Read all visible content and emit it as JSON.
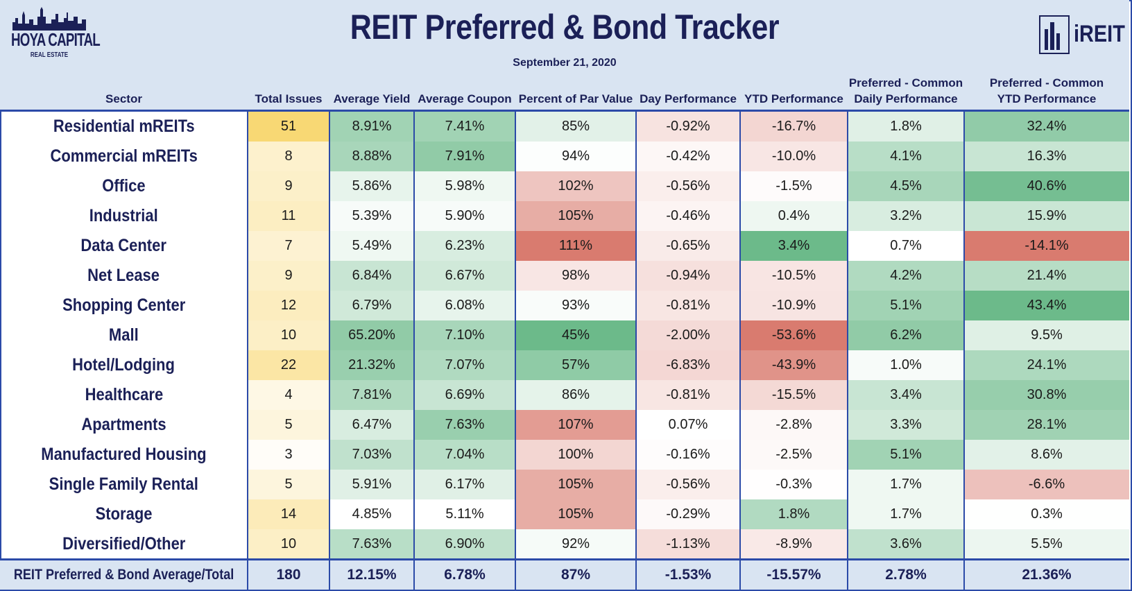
{
  "title": "REIT Preferred & Bond Tracker",
  "date": "September 21, 2020",
  "logo_left": {
    "brand": "HOYA CAPITAL",
    "sub": "REAL ESTATE"
  },
  "logo_right": {
    "word": "iREIT"
  },
  "colors": {
    "header_bg": "#d9e4f2",
    "border": "#2b4aa8",
    "text_dark": "#1b2057",
    "green_strong": "#6cba8a",
    "red_strong": "#d97b6f",
    "yellow_strong": "#f8d66d"
  },
  "chart_data": {
    "type": "table",
    "title": "REIT Preferred & Bond Tracker",
    "subtitle": "September 21, 2020",
    "columns": [
      {
        "key": "sector",
        "label": "Sector"
      },
      {
        "key": "issues",
        "label": "Total Issues"
      },
      {
        "key": "yield",
        "label": "Average Yield"
      },
      {
        "key": "coupon",
        "label": "Average Coupon"
      },
      {
        "key": "par",
        "label": "Percent of Par Value"
      },
      {
        "key": "day",
        "label": "Day Performance"
      },
      {
        "key": "ytd",
        "label": "YTD Performance"
      },
      {
        "key": "pc_daily",
        "label": "Preferred - Common\nDaily Performance"
      },
      {
        "key": "pc_ytd",
        "label": "Preferred - Common\nYTD Performance"
      }
    ],
    "rows": [
      {
        "sector": "Residential mREITs",
        "issues": "51",
        "yield": "8.91%",
        "coupon": "7.41%",
        "par": "85%",
        "day": "-0.92%",
        "ytd": "-16.7%",
        "pc_daily": "1.8%",
        "pc_ytd": "32.4%"
      },
      {
        "sector": "Commercial mREITs",
        "issues": "8",
        "yield": "8.88%",
        "coupon": "7.91%",
        "par": "94%",
        "day": "-0.42%",
        "ytd": "-10.0%",
        "pc_daily": "4.1%",
        "pc_ytd": "16.3%"
      },
      {
        "sector": "Office",
        "issues": "9",
        "yield": "5.86%",
        "coupon": "5.98%",
        "par": "102%",
        "day": "-0.56%",
        "ytd": "-1.5%",
        "pc_daily": "4.5%",
        "pc_ytd": "40.6%"
      },
      {
        "sector": "Industrial",
        "issues": "11",
        "yield": "5.39%",
        "coupon": "5.90%",
        "par": "105%",
        "day": "-0.46%",
        "ytd": "0.4%",
        "pc_daily": "3.2%",
        "pc_ytd": "15.9%"
      },
      {
        "sector": "Data Center",
        "issues": "7",
        "yield": "5.49%",
        "coupon": "6.23%",
        "par": "111%",
        "day": "-0.65%",
        "ytd": "3.4%",
        "pc_daily": "0.7%",
        "pc_ytd": "-14.1%"
      },
      {
        "sector": "Net Lease",
        "issues": "9",
        "yield": "6.84%",
        "coupon": "6.67%",
        "par": "98%",
        "day": "-0.94%",
        "ytd": "-10.5%",
        "pc_daily": "4.2%",
        "pc_ytd": "21.4%"
      },
      {
        "sector": "Shopping Center",
        "issues": "12",
        "yield": "6.79%",
        "coupon": "6.08%",
        "par": "93%",
        "day": "-0.81%",
        "ytd": "-10.9%",
        "pc_daily": "5.1%",
        "pc_ytd": "43.4%"
      },
      {
        "sector": "Mall",
        "issues": "10",
        "yield": "65.20%",
        "coupon": "7.10%",
        "par": "45%",
        "day": "-2.00%",
        "ytd": "-53.6%",
        "pc_daily": "6.2%",
        "pc_ytd": "9.5%"
      },
      {
        "sector": "Hotel/Lodging",
        "issues": "22",
        "yield": "21.32%",
        "coupon": "7.07%",
        "par": "57%",
        "day": "-6.83%",
        "ytd": "-43.9%",
        "pc_daily": "1.0%",
        "pc_ytd": "24.1%"
      },
      {
        "sector": "Healthcare",
        "issues": "4",
        "yield": "7.81%",
        "coupon": "6.69%",
        "par": "86%",
        "day": "-0.81%",
        "ytd": "-15.5%",
        "pc_daily": "3.4%",
        "pc_ytd": "30.8%"
      },
      {
        "sector": "Apartments",
        "issues": "5",
        "yield": "6.47%",
        "coupon": "7.63%",
        "par": "107%",
        "day": "0.07%",
        "ytd": "-2.8%",
        "pc_daily": "3.3%",
        "pc_ytd": "28.1%"
      },
      {
        "sector": "Manufactured Housing",
        "issues": "3",
        "yield": "7.03%",
        "coupon": "7.04%",
        "par": "100%",
        "day": "-0.16%",
        "ytd": "-2.5%",
        "pc_daily": "5.1%",
        "pc_ytd": "8.6%"
      },
      {
        "sector": "Single Family Rental",
        "issues": "5",
        "yield": "5.91%",
        "coupon": "6.17%",
        "par": "105%",
        "day": "-0.56%",
        "ytd": "-0.3%",
        "pc_daily": "1.7%",
        "pc_ytd": "-6.6%"
      },
      {
        "sector": "Storage",
        "issues": "14",
        "yield": "4.85%",
        "coupon": "5.11%",
        "par": "105%",
        "day": "-0.29%",
        "ytd": "1.8%",
        "pc_daily": "1.7%",
        "pc_ytd": "0.3%"
      },
      {
        "sector": "Diversified/Other",
        "issues": "10",
        "yield": "7.63%",
        "coupon": "6.90%",
        "par": "92%",
        "day": "-1.13%",
        "ytd": "-8.9%",
        "pc_daily": "3.6%",
        "pc_ytd": "5.5%"
      }
    ],
    "footer": {
      "sector": "REIT Preferred & Bond Average/Total",
      "issues": "180",
      "yield": "12.15%",
      "coupon": "6.78%",
      "par": "87%",
      "day": "-1.53%",
      "ytd": "-15.57%",
      "pc_daily": "2.78%",
      "pc_ytd": "21.36%"
    },
    "shading": {
      "issues": {
        "scale": "white-yellow",
        "higher": "yellow"
      },
      "yield": {
        "scale": "white-green",
        "higher": "green"
      },
      "coupon": {
        "scale": "white-green",
        "higher": "green"
      },
      "par": {
        "scale": "green-white-red",
        "lower": "green",
        "higher": "red"
      },
      "day": {
        "scale": "red-white",
        "lower": "red"
      },
      "ytd": {
        "scale": "red-white-green",
        "lower": "red",
        "higher": "green"
      },
      "pc_daily": {
        "scale": "white-green",
        "higher": "green"
      },
      "pc_ytd": {
        "scale": "red-white-green",
        "lower": "red",
        "higher": "green"
      }
    }
  }
}
